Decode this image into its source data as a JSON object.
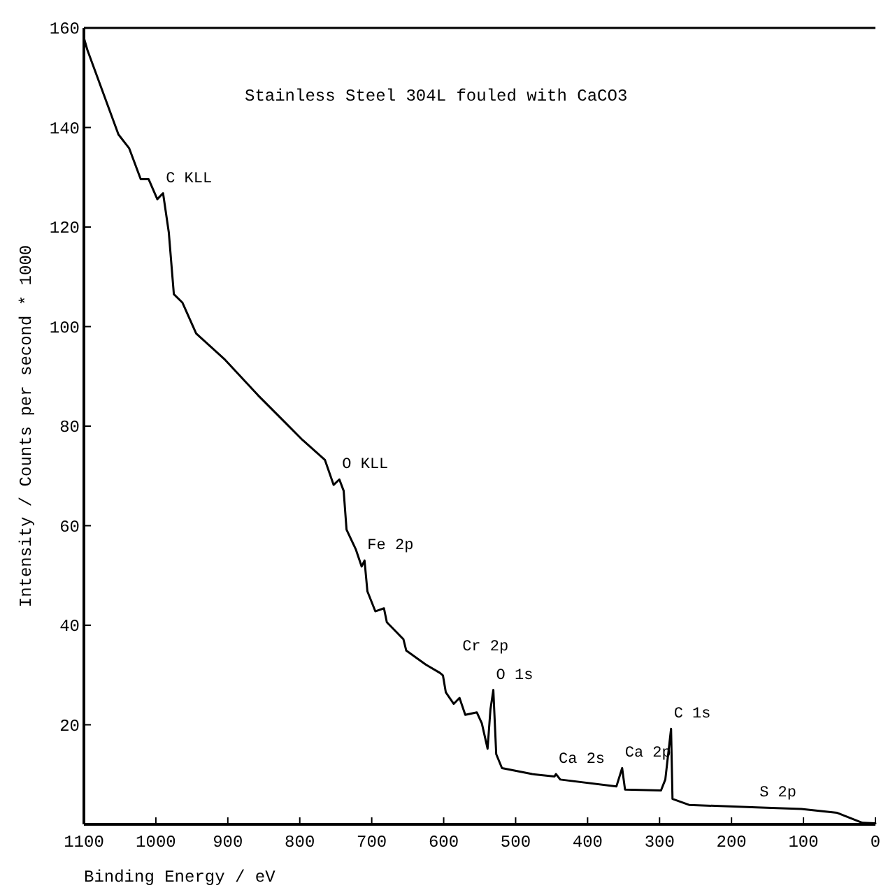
{
  "chart_data": {
    "type": "line",
    "title": "Stainless Steel 304L fouled with CaCO3",
    "xlabel": "Binding Energy / eV",
    "ylabel": "Intensity / Counts per second * 1000",
    "x": [
      1100,
      1095,
      1052,
      1037,
      1021,
      1010,
      998,
      990,
      982,
      975,
      963,
      944,
      905,
      858,
      827,
      796,
      765,
      753,
      745,
      739,
      735,
      722,
      714,
      710,
      706,
      695,
      683,
      679,
      656,
      652,
      625,
      605,
      601,
      597,
      586,
      578,
      570,
      554,
      547,
      539,
      535,
      531,
      527,
      519,
      477,
      446,
      444,
      438,
      360,
      352,
      348,
      298,
      292,
      284,
      282,
      259,
      165,
      103,
      53,
      18,
      0
    ],
    "series": [
      {
        "color": "#000000",
        "values": [
          158,
          155.5,
          138.6,
          135.8,
          129.6,
          129.6,
          125.6,
          126.8,
          118.9,
          106.5,
          104.8,
          98.6,
          93.5,
          86.2,
          81.7,
          77.2,
          73.2,
          68.2,
          69.3,
          67.0,
          59.2,
          55.2,
          51.8,
          53.0,
          46.8,
          42.8,
          43.4,
          40.6,
          37.2,
          34.9,
          32.1,
          30.4,
          29.9,
          26.5,
          24.2,
          25.4,
          22.0,
          22.5,
          20.3,
          15.2,
          23.1,
          27.0,
          14.1,
          11.3,
          10.1,
          9.6,
          10.1,
          9.0,
          7.6,
          11.3,
          7.0,
          6.8,
          9.0,
          19.2,
          5.1,
          3.9,
          3.4,
          3.1,
          2.3,
          0.3,
          0.2
        ]
      }
    ],
    "xlim": [
      1100,
      0
    ],
    "xticks": [
      1100,
      1000,
      900,
      800,
      700,
      600,
      500,
      400,
      300,
      200,
      100,
      0
    ],
    "ylim": [
      0,
      160
    ],
    "yticks": [
      20,
      40,
      60,
      80,
      100,
      120,
      140,
      160
    ],
    "annotations": [
      {
        "text": "C KLL",
        "x": 990,
        "y": 126.8
      },
      {
        "text": "O KLL",
        "x": 745,
        "y": 69.3
      },
      {
        "text": "Fe 2p",
        "x": 710,
        "y": 53.0
      },
      {
        "text": "O 1s",
        "x": 531,
        "y": 27.0
      },
      {
        "text": "Cr 2p",
        "x": 578,
        "y": 25.4
      },
      {
        "text": "C 1s",
        "x": 284,
        "y": 19.2
      },
      {
        "text": "Ca 2s",
        "x": 444,
        "y": 10.1
      },
      {
        "text": "Ca 2p",
        "x": 352,
        "y": 11.3
      },
      {
        "text": "S 2p",
        "x": 165,
        "y": 3.4
      }
    ],
    "grid": false,
    "marker": "none",
    "line_style": "solid"
  }
}
